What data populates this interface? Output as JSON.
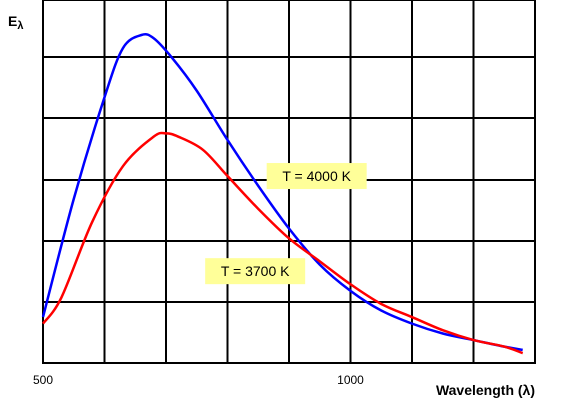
{
  "chart_data": {
    "type": "line",
    "title": "",
    "ylabel": "E",
    "ylabel_sub": "λ",
    "xlabel": "Wavelength (λ)",
    "xlim": [
      500,
      1300
    ],
    "ylim": [
      0,
      1
    ],
    "x_ticks": [
      {
        "value": 500,
        "label": "500"
      },
      {
        "value": 1000,
        "label": "1000"
      }
    ],
    "grid": true,
    "grid_x_step": 100,
    "grid_y_step": 0.1667,
    "series": [
      {
        "name": "T = 4000 K",
        "color": "#0000ff",
        "x": [
          500,
          550,
          600,
          630,
          660,
          680,
          710,
          750,
          800,
          850,
          900,
          950,
          1000,
          1050,
          1100,
          1150,
          1200,
          1250,
          1280
        ],
        "y": [
          0.14,
          0.5,
          0.81,
          0.96,
          1.0,
          0.99,
          0.93,
          0.83,
          0.68,
          0.54,
          0.41,
          0.3,
          0.22,
          0.16,
          0.12,
          0.09,
          0.07,
          0.05,
          0.04
        ]
      },
      {
        "name": "T = 3700 K",
        "color": "#ff0000",
        "x": [
          500,
          530,
          580,
          630,
          680,
          700,
          720,
          760,
          800,
          850,
          900,
          950,
          1000,
          1050,
          1100,
          1150,
          1200,
          1250,
          1280
        ],
        "y": [
          0.12,
          0.2,
          0.43,
          0.6,
          0.69,
          0.7,
          0.69,
          0.65,
          0.57,
          0.47,
          0.38,
          0.31,
          0.24,
          0.18,
          0.14,
          0.1,
          0.07,
          0.05,
          0.03
        ]
      }
    ],
    "annotations": [
      {
        "text": "T = 4000 K",
        "series": "T = 4000 K",
        "x": 945,
        "y": 0.57
      },
      {
        "text": "T = 3700 K",
        "series": "T = 3700 K",
        "x": 845,
        "y": 0.28
      }
    ]
  }
}
